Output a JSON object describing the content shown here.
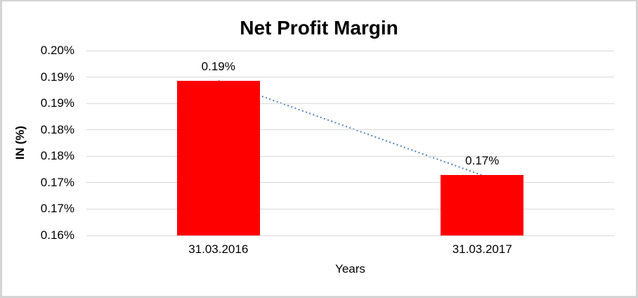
{
  "chart_data": {
    "type": "bar",
    "title": "Net Profit Margin",
    "xlabel": "Years",
    "ylabel": "IN (%)",
    "categories": [
      "31.03.2016",
      "31.03.2017"
    ],
    "series": [
      {
        "name": "Net Profit Margin",
        "values": [
          0.1893,
          0.1714
        ],
        "data_labels": [
          "0.19%",
          "0.17%"
        ],
        "color": "#ff0000"
      }
    ],
    "y_axis": {
      "min": 0.16,
      "max": 0.195,
      "step": 0.005,
      "tick_labels_top_to_bottom": [
        "0.20%",
        "0.19%",
        "0.19%",
        "0.18%",
        "0.18%",
        "0.17%",
        "0.17%",
        "0.16%"
      ]
    },
    "grid": true,
    "legend": "none",
    "trendline": {
      "type": "linear",
      "style": "dotted",
      "color": "#4e81bd",
      "connects": [
        "0.19%",
        "0.17%"
      ]
    },
    "colors": {
      "bar": "#ff0000",
      "gridline": "#d9d9d9",
      "trendline": "#4e81bd",
      "frame_border": "#d4d4d4",
      "text": "#000000",
      "background": "#ffffff"
    }
  }
}
